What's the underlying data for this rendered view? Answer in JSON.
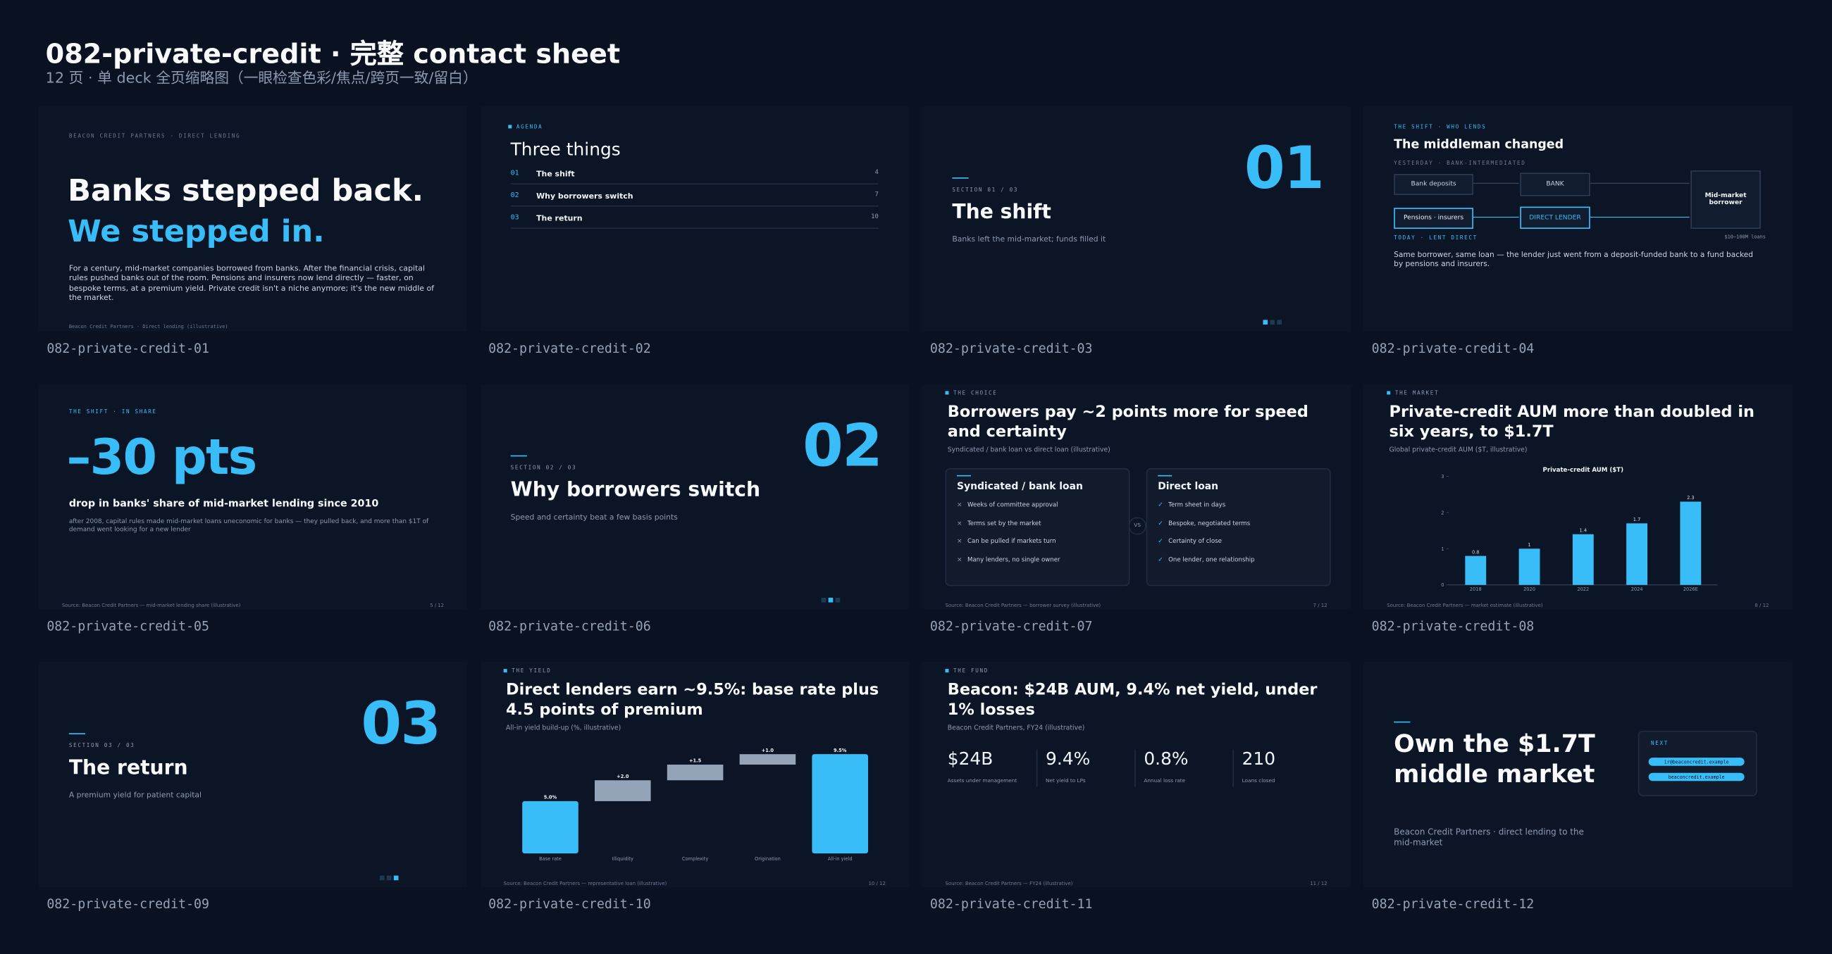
{
  "header": {
    "title": "082-private-credit · 完整 contact sheet",
    "subtitle": "12 页 · 单 deck 全页缩略图（一眼检查色彩/焦点/跨页一致/留白）"
  },
  "slides": [
    {
      "label": "082-private-credit-01",
      "kicker": "BEACON CREDIT PARTNERS · DIRECT LENDING",
      "title": "Banks stepped back.",
      "accent": "We stepped in.",
      "body": "For a century, mid-market companies borrowed from banks. After the financial crisis, capital rules pushed banks out of the room. Pensions and insurers now lend directly — faster, on bespoke terms, at a premium yield. Private credit isn't a niche anymore; it's the new middle of the market.",
      "footer": "Beacon Credit Partners · Direct lending (illustrative)"
    },
    {
      "label": "082-private-credit-02",
      "kicker": "AGENDA",
      "title": "Three things",
      "items": [
        {
          "num": "01",
          "text": "The shift",
          "page": 4
        },
        {
          "num": "02",
          "text": "Why borrowers switch",
          "page": 7
        },
        {
          "num": "03",
          "text": "The return",
          "page": 10
        }
      ]
    },
    {
      "label": "082-private-credit-03",
      "number": "01",
      "section": "SECTION 01 / 03",
      "title": "The shift",
      "subtitle": "Banks left the mid-market; funds filled it"
    },
    {
      "label": "082-private-credit-04",
      "kicker": "THE SHIFT · WHO LENDS",
      "title": "The middleman changed",
      "before": "YESTERDAY · BANK-INTERMEDIATED",
      "after": "TODAY · LENT DIRECT",
      "nodes": [
        "Bank deposits",
        "BANK",
        "Mid-market borrower",
        "Pensions · insurers",
        "DIRECT LENDER"
      ],
      "loan_size": "$10–100M loans",
      "body": "Same borrower, same loan — the lender just went from a deposit-funded bank to a fund backed by pensions and insurers."
    },
    {
      "label": "082-private-credit-05",
      "kicker": "THE SHIFT · IN SHARE",
      "stat": "–30 pts",
      "stat_label": "drop in banks' share of mid-market lending since 2010",
      "body": "after 2008, capital rules made mid-market loans uneconomic for banks — they pulled back, and more than $1T of demand went looking for a new lender",
      "source": "Source: Beacon Credit Partners — mid-market lending share (illustrative)",
      "page": "5 / 12"
    },
    {
      "label": "082-private-credit-06",
      "number": "02",
      "section": "SECTION 02 / 03",
      "title": "Why borrowers switch",
      "subtitle": "Speed and certainty beat a few basis points"
    },
    {
      "label": "082-private-credit-07",
      "kicker": "THE CHOICE",
      "title": "Borrowers pay ~2 points more for speed and certainty",
      "subtitle": "Syndicated / bank loan vs direct loan (illustrative)",
      "versus": "VS",
      "cards": [
        {
          "title": "Syndicated / bank loan",
          "mark": "×",
          "items": [
            "Weeks of committee approval",
            "Terms set by the market",
            "Can be pulled if markets turn",
            "Many lenders, no single owner"
          ]
        },
        {
          "title": "Direct loan",
          "mark": "✓",
          "items": [
            "Term sheet in days",
            "Bespoke, negotiated terms",
            "Certainty of close",
            "One lender, one relationship"
          ]
        }
      ],
      "source": "Source: Beacon Credit Partners — borrower survey (illustrative)",
      "page": "7 / 12"
    },
    {
      "label": "082-private-credit-08",
      "kicker": "THE MARKET",
      "title": "Private-credit AUM more than doubled in six years, to $1.7T",
      "subtitle": "Global private-credit AUM ($T, illustrative)",
      "chart": {
        "type": "bar",
        "title": "Private-credit AUM ($T)",
        "categories": [
          "2018",
          "2020",
          "2022",
          "2024",
          "2026E"
        ],
        "values": [
          0.8,
          1,
          1.4,
          1.7,
          2.3
        ],
        "color": "#38bdf8",
        "ylim": [
          0,
          3
        ],
        "yticks": [
          0,
          1,
          2,
          3
        ]
      },
      "source": "Source: Beacon Credit Partners — market estimate (illustrative)",
      "page": "8 / 12"
    },
    {
      "label": "082-private-credit-09",
      "number": "03",
      "section": "SECTION 03 / 03",
      "title": "The return",
      "subtitle": "A premium yield for patient capital"
    },
    {
      "label": "082-private-credit-10",
      "kicker": "THE YIELD",
      "title": "Direct lenders earn ~9.5%: base rate plus 4.5 points of premium",
      "subtitle": "All-in yield build-up (%, illustrative)",
      "chart": {
        "type": "waterfall",
        "categories": [
          "Base rate",
          "Illiquidity",
          "Complexity",
          "Origination",
          "All-in yield"
        ],
        "values": [
          5,
          2,
          1.5,
          1,
          9.5
        ],
        "value_labels": [
          "5.0%",
          "+2.0",
          "+1.5",
          "+1.0",
          "9.5%"
        ],
        "measure": [
          "absolute",
          "relative",
          "relative",
          "relative",
          "total"
        ],
        "colors": [
          "#38bdf8",
          "#94a3b8",
          "#94a3b8",
          "#94a3b8",
          "#38bdf8"
        ]
      },
      "source": "Source: Beacon Credit Partners — representative loan (illustrative)",
      "page": "10 / 12"
    },
    {
      "label": "082-private-credit-11",
      "kicker": "THE FUND",
      "title": "Beacon: $24B AUM, 9.4% net yield, under 1% losses",
      "subtitle": "Beacon Credit Partners, FY24 (illustrative)",
      "kpis": [
        {
          "value": "$24B",
          "label": "Assets under management"
        },
        {
          "value": "9.4%",
          "label": "Net yield to LPs"
        },
        {
          "value": "0.8%",
          "label": "Annual loss rate"
        },
        {
          "value": "210",
          "label": "Loans closed"
        }
      ],
      "source": "Source: Beacon Credit Partners — FY24 (illustrative)",
      "page": "11 / 12"
    },
    {
      "label": "082-private-credit-12",
      "title": "Own the $1.7T middle market",
      "subtitle": "Beacon Credit Partners · direct lending to the mid-market",
      "next": "NEXT",
      "buttons": [
        "ir@beaconcredit.example",
        "beaconcredit.example"
      ]
    }
  ]
}
